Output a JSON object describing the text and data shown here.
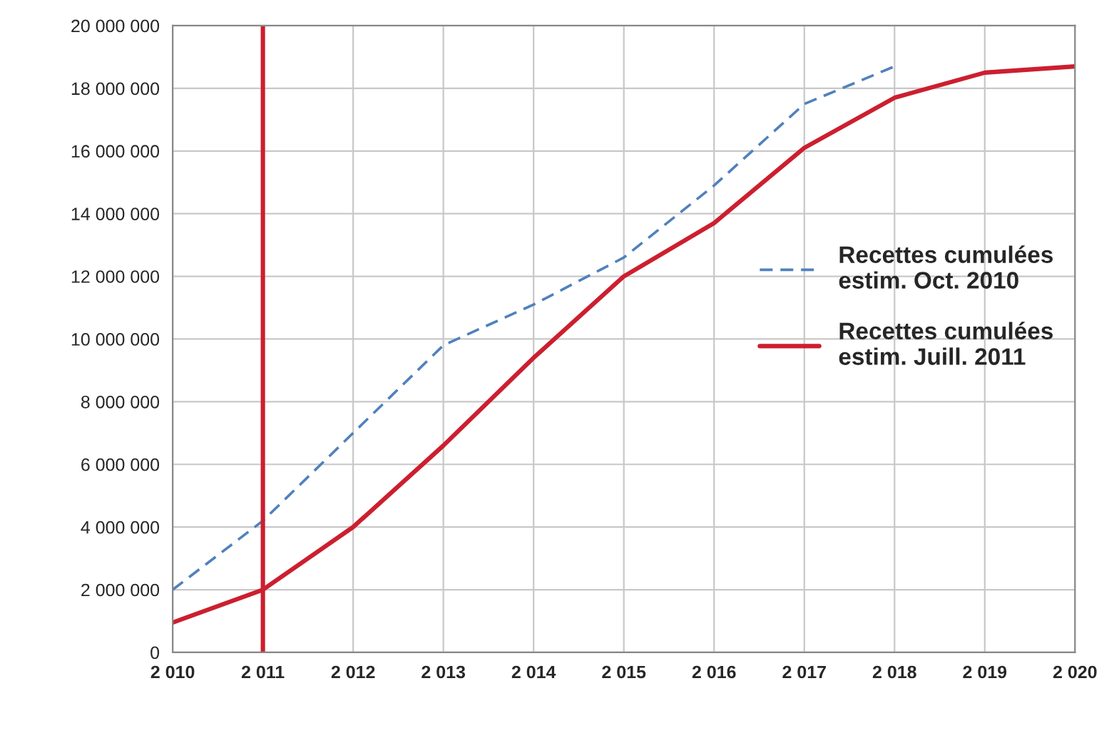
{
  "chart_data": {
    "type": "line",
    "x": [
      2010,
      2011,
      2012,
      2013,
      2014,
      2015,
      2016,
      2017,
      2018,
      2019,
      2020
    ],
    "series": [
      {
        "name": "Recettes cumulées\nestim. Oct. 2010",
        "color": "#4f81bd",
        "line_style": "dashed",
        "values": [
          2000000,
          4200000,
          7000000,
          9800000,
          11100000,
          12600000,
          14900000,
          17500000,
          18700000,
          null,
          null
        ]
      },
      {
        "name": "Recettes cumulées\nestim. Juill. 2011",
        "color": "#cc1f2f",
        "line_style": "solid",
        "values": [
          950000,
          2000000,
          4000000,
          6600000,
          9400000,
          12000000,
          13700000,
          16100000,
          17700000,
          18500000,
          18700000
        ]
      }
    ],
    "ref_lines": [
      {
        "axis": "x",
        "value": 2011,
        "color": "#cc1f2f",
        "line_style": "solid"
      }
    ],
    "xlim": [
      2010,
      2020
    ],
    "xticks": [
      {
        "value": 2010,
        "label": "2 010"
      },
      {
        "value": 2011,
        "label": "2 011"
      },
      {
        "value": 2012,
        "label": "2 012"
      },
      {
        "value": 2013,
        "label": "2 013"
      },
      {
        "value": 2014,
        "label": "2 014"
      },
      {
        "value": 2015,
        "label": "2 015"
      },
      {
        "value": 2016,
        "label": "2 016"
      },
      {
        "value": 2017,
        "label": "2 017"
      },
      {
        "value": 2018,
        "label": "2 018"
      },
      {
        "value": 2019,
        "label": "2 019"
      },
      {
        "value": 2020,
        "label": "2 020"
      }
    ],
    "ylim": [
      0,
      20000000
    ],
    "yticks": [
      {
        "value": 0,
        "label": "0"
      },
      {
        "value": 2000000,
        "label": "2 000 000"
      },
      {
        "value": 4000000,
        "label": "4 000 000"
      },
      {
        "value": 6000000,
        "label": "6 000 000"
      },
      {
        "value": 8000000,
        "label": "8 000 000"
      },
      {
        "value": 10000000,
        "label": "10 000 000"
      },
      {
        "value": 12000000,
        "label": "12 000 000"
      },
      {
        "value": 14000000,
        "label": "14 000 000"
      },
      {
        "value": 16000000,
        "label": "16 000 000"
      },
      {
        "value": 18000000,
        "label": "18 000 000"
      },
      {
        "value": 20000000,
        "label": "20 000 000"
      }
    ],
    "grid": true,
    "legend": "right"
  }
}
